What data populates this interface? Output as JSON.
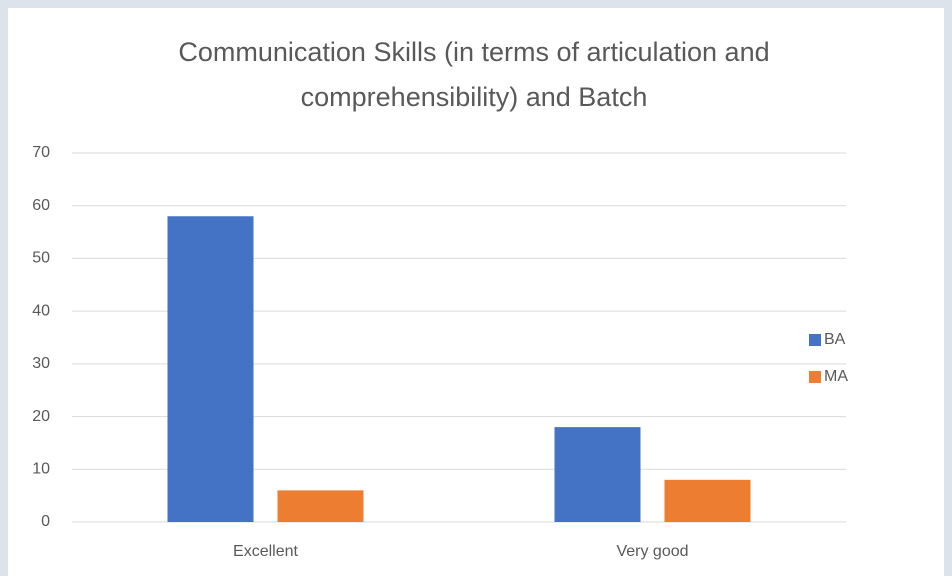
{
  "chart_data": {
    "type": "bar",
    "title": "Communication Skills (in terms of articulation and comprehensibility) and Batch",
    "categories": [
      "Excellent",
      "Very good"
    ],
    "series": [
      {
        "name": "BA",
        "color": "#4472c4",
        "values": [
          58,
          18
        ]
      },
      {
        "name": "MA",
        "color": "#ed7d31",
        "values": [
          6,
          8
        ]
      }
    ],
    "ylim": [
      0,
      70
    ],
    "yticks": [
      0,
      10,
      20,
      30,
      40,
      50,
      60,
      70
    ],
    "grid": true,
    "legend": "right"
  }
}
